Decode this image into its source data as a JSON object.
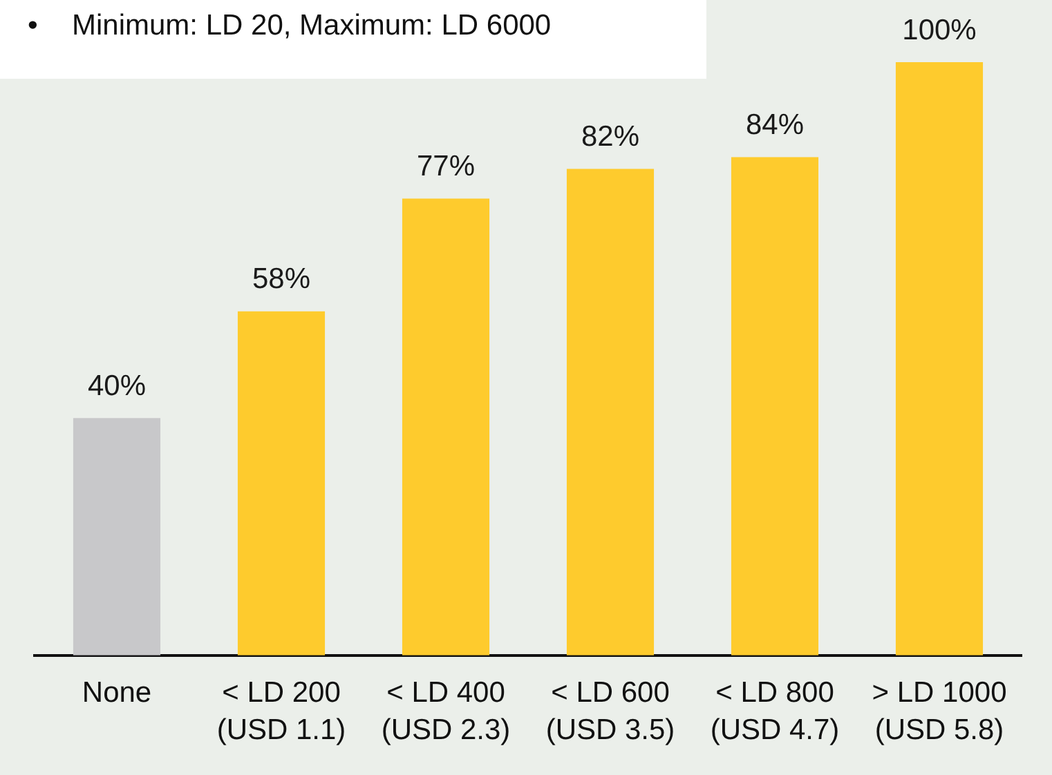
{
  "chart_data": {
    "type": "bar",
    "categories": [
      "None",
      "< LD 200\n(USD 1.1)",
      "< LD 400\n(USD 2.3)",
      "< LD 600\n(USD 3.5)",
      "< LD 800\n(USD 4.7)",
      "> LD 1000\n(USD 5.8)"
    ],
    "values": [
      40,
      58,
      77,
      82,
      84,
      100
    ],
    "colors": [
      "#c8c8ca",
      "#fecb2d",
      "#fecb2d",
      "#fecb2d",
      "#fecb2d",
      "#fecb2d"
    ],
    "value_labels": [
      "40%",
      "58%",
      "77%",
      "82%",
      "84%",
      "100%"
    ],
    "ylim": [
      0,
      100
    ],
    "tick_labels": "x",
    "annotations": [
      "•\tMinimum: LD 20, Maximum: LD 6000"
    ]
  }
}
